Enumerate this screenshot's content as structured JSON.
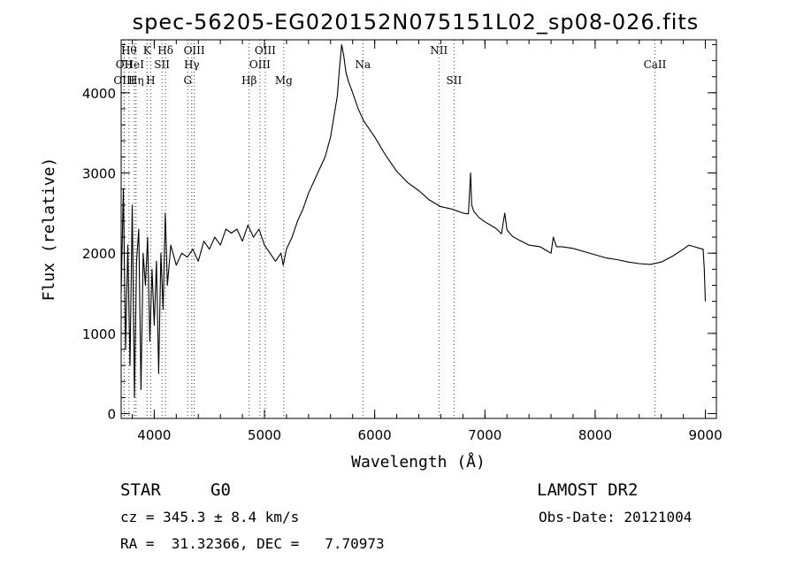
{
  "chart_data": {
    "type": "line",
    "title": "spec-56205-EG020152N075151L02_sp08-026.fits",
    "xlabel": "Wavelength (Å)",
    "ylabel": "Flux (relative)",
    "xlim": [
      3700,
      9100
    ],
    "ylim": [
      -60,
      4660
    ],
    "xticks": [
      {
        "value": 4000,
        "label": "4000"
      },
      {
        "value": 5000,
        "label": "5000"
      },
      {
        "value": 6000,
        "label": "6000"
      },
      {
        "value": 7000,
        "label": "7000"
      },
      {
        "value": 8000,
        "label": "8000"
      },
      {
        "value": 9000,
        "label": "9000"
      }
    ],
    "yticks": [
      {
        "value": 0,
        "label": "0"
      },
      {
        "value": 1000,
        "label": "1000"
      },
      {
        "value": 2000,
        "label": "2000"
      },
      {
        "value": 3000,
        "label": "3000"
      },
      {
        "value": 4000,
        "label": "4000"
      }
    ],
    "grid": false,
    "line_color": "#000000",
    "marker_color": "#cc0000",
    "spectrum": {
      "x": [
        3700,
        3720,
        3740,
        3760,
        3780,
        3800,
        3820,
        3840,
        3860,
        3880,
        3900,
        3920,
        3940,
        3960,
        3980,
        4000,
        4020,
        4040,
        4060,
        4080,
        4100,
        4120,
        4150,
        4200,
        4250,
        4300,
        4350,
        4400,
        4450,
        4500,
        4550,
        4600,
        4650,
        4700,
        4750,
        4800,
        4850,
        4900,
        4950,
        5000,
        5050,
        5100,
        5150,
        5170,
        5200,
        5250,
        5300,
        5350,
        5400,
        5450,
        5500,
        5550,
        5600,
        5630,
        5660,
        5680,
        5700,
        5720,
        5740,
        5760,
        5800,
        5850,
        5900,
        5950,
        6000,
        6100,
        6200,
        6300,
        6400,
        6500,
        6600,
        6700,
        6800,
        6850,
        6870,
        6880,
        6900,
        6950,
        7000,
        7100,
        7150,
        7180,
        7200,
        7250,
        7300,
        7400,
        7500,
        7550,
        7600,
        7620,
        7650,
        7700,
        7800,
        7900,
        8000,
        8100,
        8200,
        8300,
        8400,
        8500,
        8600,
        8700,
        8800,
        8850,
        8900,
        8950,
        8980,
        8990,
        9000
      ],
      "y": [
        1500,
        2800,
        800,
        2100,
        600,
        2600,
        200,
        1900,
        2300,
        300,
        2000,
        1600,
        2200,
        900,
        1800,
        1100,
        1900,
        500,
        2000,
        1300,
        2500,
        1600,
        2100,
        1850,
        2000,
        1950,
        2050,
        1900,
        2150,
        2050,
        2200,
        2100,
        2300,
        2250,
        2300,
        2150,
        2350,
        2200,
        2300,
        2100,
        2000,
        1900,
        2000,
        1850,
        2050,
        2200,
        2400,
        2550,
        2750,
        2900,
        3050,
        3200,
        3450,
        3700,
        3950,
        4300,
        4600,
        4450,
        4250,
        4150,
        4000,
        3800,
        3650,
        3550,
        3450,
        3220,
        3020,
        2880,
        2780,
        2660,
        2580,
        2550,
        2500,
        2490,
        3000,
        2600,
        2520,
        2440,
        2390,
        2310,
        2240,
        2500,
        2290,
        2210,
        2170,
        2100,
        2080,
        2040,
        2000,
        2200,
        2080,
        2080,
        2060,
        2020,
        1980,
        1940,
        1920,
        1890,
        1870,
        1860,
        1890,
        1960,
        2050,
        2100,
        2080,
        2060,
        2050,
        1800,
        1400
      ]
    },
    "lines": [
      {
        "label": "OII",
        "x": 3727,
        "row": 2
      },
      {
        "label": "OIII",
        "x": 3727,
        "row": 3
      },
      {
        "label": "Hθ",
        "x": 3771,
        "row": 1
      },
      {
        "label": "Hη",
        "x": 3835,
        "row": 3
      },
      {
        "label": "HeI",
        "x": 3819,
        "row": 2
      },
      {
        "label": "K",
        "x": 3934,
        "row": 1
      },
      {
        "label": "SII",
        "x": 4070,
        "row": 2
      },
      {
        "label": "H",
        "x": 3968,
        "row": 3
      },
      {
        "label": "Hδ",
        "x": 4102,
        "row": 1
      },
      {
        "label": "OIII",
        "x": 4363,
        "row": 1
      },
      {
        "label": "Hγ",
        "x": 4340,
        "row": 2
      },
      {
        "label": "G",
        "x": 4304,
        "row": 3
      },
      {
        "label": "Hβ",
        "x": 4861,
        "row": 3
      },
      {
        "label": "OIII",
        "x": 5007,
        "row": 1
      },
      {
        "label": "OIII",
        "x": 4959,
        "row": 2
      },
      {
        "label": "Mg",
        "x": 5175,
        "row": 3
      },
      {
        "label": "Na",
        "x": 5893,
        "row": 2
      },
      {
        "label": "NII",
        "x": 6583,
        "row": 1
      },
      {
        "label": "SII",
        "x": 6720,
        "row": 3
      },
      {
        "label": "CaII",
        "x": 8542,
        "row": 2
      }
    ]
  },
  "footer": {
    "object_class": "STAR",
    "subclass": "G0",
    "cz": "cz = 345.3 ± 8.4 km/s",
    "coords": "RA =  31.32366, DEC =   7.70973",
    "survey": "LAMOST DR2",
    "obs_date": "Obs-Date: 20121004"
  }
}
